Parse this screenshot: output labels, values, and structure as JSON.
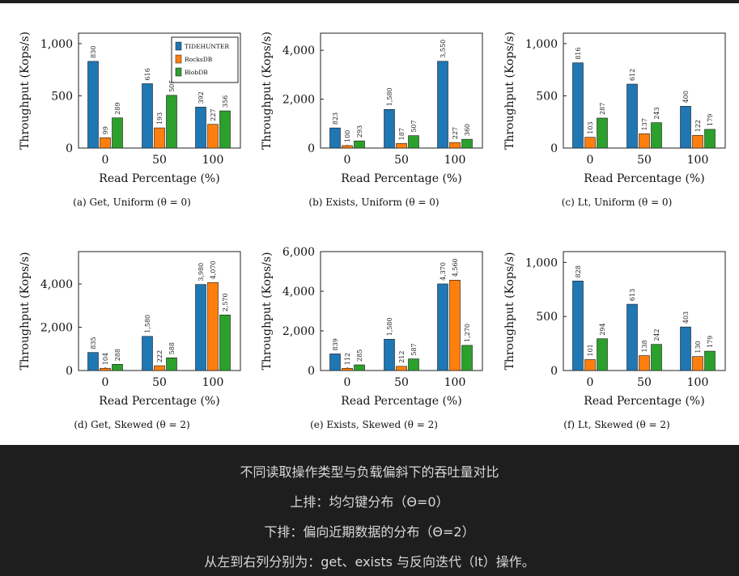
{
  "colors": {
    "tidehunter": "#1f77b4",
    "rocksdb": "#ff7f0e",
    "blobdb": "#2ca02c"
  },
  "legend": [
    "TIDEHUNTER",
    "RocksDB",
    "BlobDB"
  ],
  "chart_data": [
    {
      "type": "bar",
      "title": "(a) Get, Uniform (θ = 0)",
      "xlabel": "Read Percentage (%)",
      "ylabel": "Throughput (Kops/s)",
      "categories": [
        "0",
        "50",
        "100"
      ],
      "ylim": [
        0,
        1100
      ],
      "yticks": [
        0,
        500,
        1000
      ],
      "ytick_labels": [
        "0",
        "500",
        "1,000"
      ],
      "series": [
        {
          "name": "TIDEHUNTER",
          "values": [
            830,
            616,
            392
          ],
          "labels": [
            "830",
            "616",
            "392"
          ]
        },
        {
          "name": "RocksDB",
          "values": [
            99,
            193,
            227
          ],
          "labels": [
            "99",
            "193",
            "227"
          ]
        },
        {
          "name": "BlobDB",
          "values": [
            289,
            505,
            356
          ],
          "labels": [
            "289",
            "505",
            "356"
          ]
        }
      ]
    },
    {
      "type": "bar",
      "title": "(b) Exists, Uniform (θ = 0)",
      "xlabel": "Read Percentage (%)",
      "ylabel": "Throughput (Kops/s)",
      "categories": [
        "0",
        "50",
        "100"
      ],
      "ylim": [
        0,
        4700
      ],
      "yticks": [
        0,
        2000,
        4000
      ],
      "ytick_labels": [
        "0",
        "2,000",
        "4,000"
      ],
      "series": [
        {
          "name": "TIDEHUNTER",
          "values": [
            823,
            1580,
            3550
          ],
          "labels": [
            "823",
            "1,580",
            "3,550"
          ]
        },
        {
          "name": "RocksDB",
          "values": [
            100,
            187,
            227
          ],
          "labels": [
            "100",
            "187",
            "227"
          ]
        },
        {
          "name": "BlobDB",
          "values": [
            293,
            507,
            360
          ],
          "labels": [
            "293",
            "507",
            "360"
          ]
        }
      ]
    },
    {
      "type": "bar",
      "title": "(c) Lt, Uniform (θ = 0)",
      "xlabel": "Read Percentage (%)",
      "ylabel": "Throughput (Kops/s)",
      "categories": [
        "0",
        "50",
        "100"
      ],
      "ylim": [
        0,
        1100
      ],
      "yticks": [
        0,
        500,
        1000
      ],
      "ytick_labels": [
        "0",
        "500",
        "1,000"
      ],
      "series": [
        {
          "name": "TIDEHUNTER",
          "values": [
            816,
            612,
            400
          ],
          "labels": [
            "816",
            "612",
            "400"
          ]
        },
        {
          "name": "RocksDB",
          "values": [
            103,
            137,
            122
          ],
          "labels": [
            "103",
            "137",
            "122"
          ]
        },
        {
          "name": "BlobDB",
          "values": [
            287,
            243,
            179
          ],
          "labels": [
            "287",
            "243",
            "179"
          ]
        }
      ]
    },
    {
      "type": "bar",
      "title": "(d) Get, Skewed (θ = 2)",
      "xlabel": "Read Percentage (%)",
      "ylabel": "Throughput (Kops/s)",
      "categories": [
        "0",
        "50",
        "100"
      ],
      "ylim": [
        0,
        5500
      ],
      "yticks": [
        0,
        2000,
        4000
      ],
      "ytick_labels": [
        "0",
        "2,000",
        "4,000"
      ],
      "series": [
        {
          "name": "TIDEHUNTER",
          "values": [
            835,
            1580,
            3980
          ],
          "labels": [
            "835",
            "1,580",
            "3,980"
          ]
        },
        {
          "name": "RocksDB",
          "values": [
            104,
            222,
            4070
          ],
          "labels": [
            "104",
            "222",
            "4,070"
          ]
        },
        {
          "name": "BlobDB",
          "values": [
            288,
            588,
            2570
          ],
          "labels": [
            "288",
            "588",
            "2,570"
          ]
        }
      ]
    },
    {
      "type": "bar",
      "title": "(e) Exists, Skewed (θ = 2)",
      "xlabel": "Read Percentage (%)",
      "ylabel": "Throughput (Kops/s)",
      "categories": [
        "0",
        "50",
        "100"
      ],
      "ylim": [
        0,
        6000
      ],
      "yticks": [
        0,
        2000,
        4000,
        6000
      ],
      "ytick_labels": [
        "0",
        "2,000",
        "4,000",
        "6,000"
      ],
      "series": [
        {
          "name": "TIDEHUNTER",
          "values": [
            839,
            1580,
            4370
          ],
          "labels": [
            "839",
            "1,580",
            "4,370"
          ]
        },
        {
          "name": "RocksDB",
          "values": [
            112,
            212,
            4560
          ],
          "labels": [
            "112",
            "212",
            "4,560"
          ]
        },
        {
          "name": "BlobDB",
          "values": [
            285,
            587,
            1270
          ],
          "labels": [
            "285",
            "587",
            "1,270"
          ]
        }
      ]
    },
    {
      "type": "bar",
      "title": "(f) Lt, Skewed (θ = 2)",
      "xlabel": "Read Percentage (%)",
      "ylabel": "Throughput (Kops/s)",
      "categories": [
        "0",
        "50",
        "100"
      ],
      "ylim": [
        0,
        1100
      ],
      "yticks": [
        0,
        500,
        1000
      ],
      "ytick_labels": [
        "0",
        "500",
        "1,000"
      ],
      "series": [
        {
          "name": "TIDEHUNTER",
          "values": [
            828,
            613,
            403
          ],
          "labels": [
            "828",
            "613",
            "403"
          ]
        },
        {
          "name": "RocksDB",
          "values": [
            101,
            138,
            130
          ],
          "labels": [
            "101",
            "138",
            "130"
          ]
        },
        {
          "name": "BlobDB",
          "values": [
            294,
            242,
            179
          ],
          "labels": [
            "294",
            "242",
            "179"
          ]
        }
      ]
    }
  ],
  "caption": {
    "line1": "不同读取操作类型与负载偏斜下的吞吐量对比",
    "line2": "上排：均匀键分布（Θ=0）",
    "line3": "下排：偏向近期数据的分布（Θ=2）",
    "line4": "从左到右列分别为：get、exists 与反向迭代（lt）操作。"
  }
}
